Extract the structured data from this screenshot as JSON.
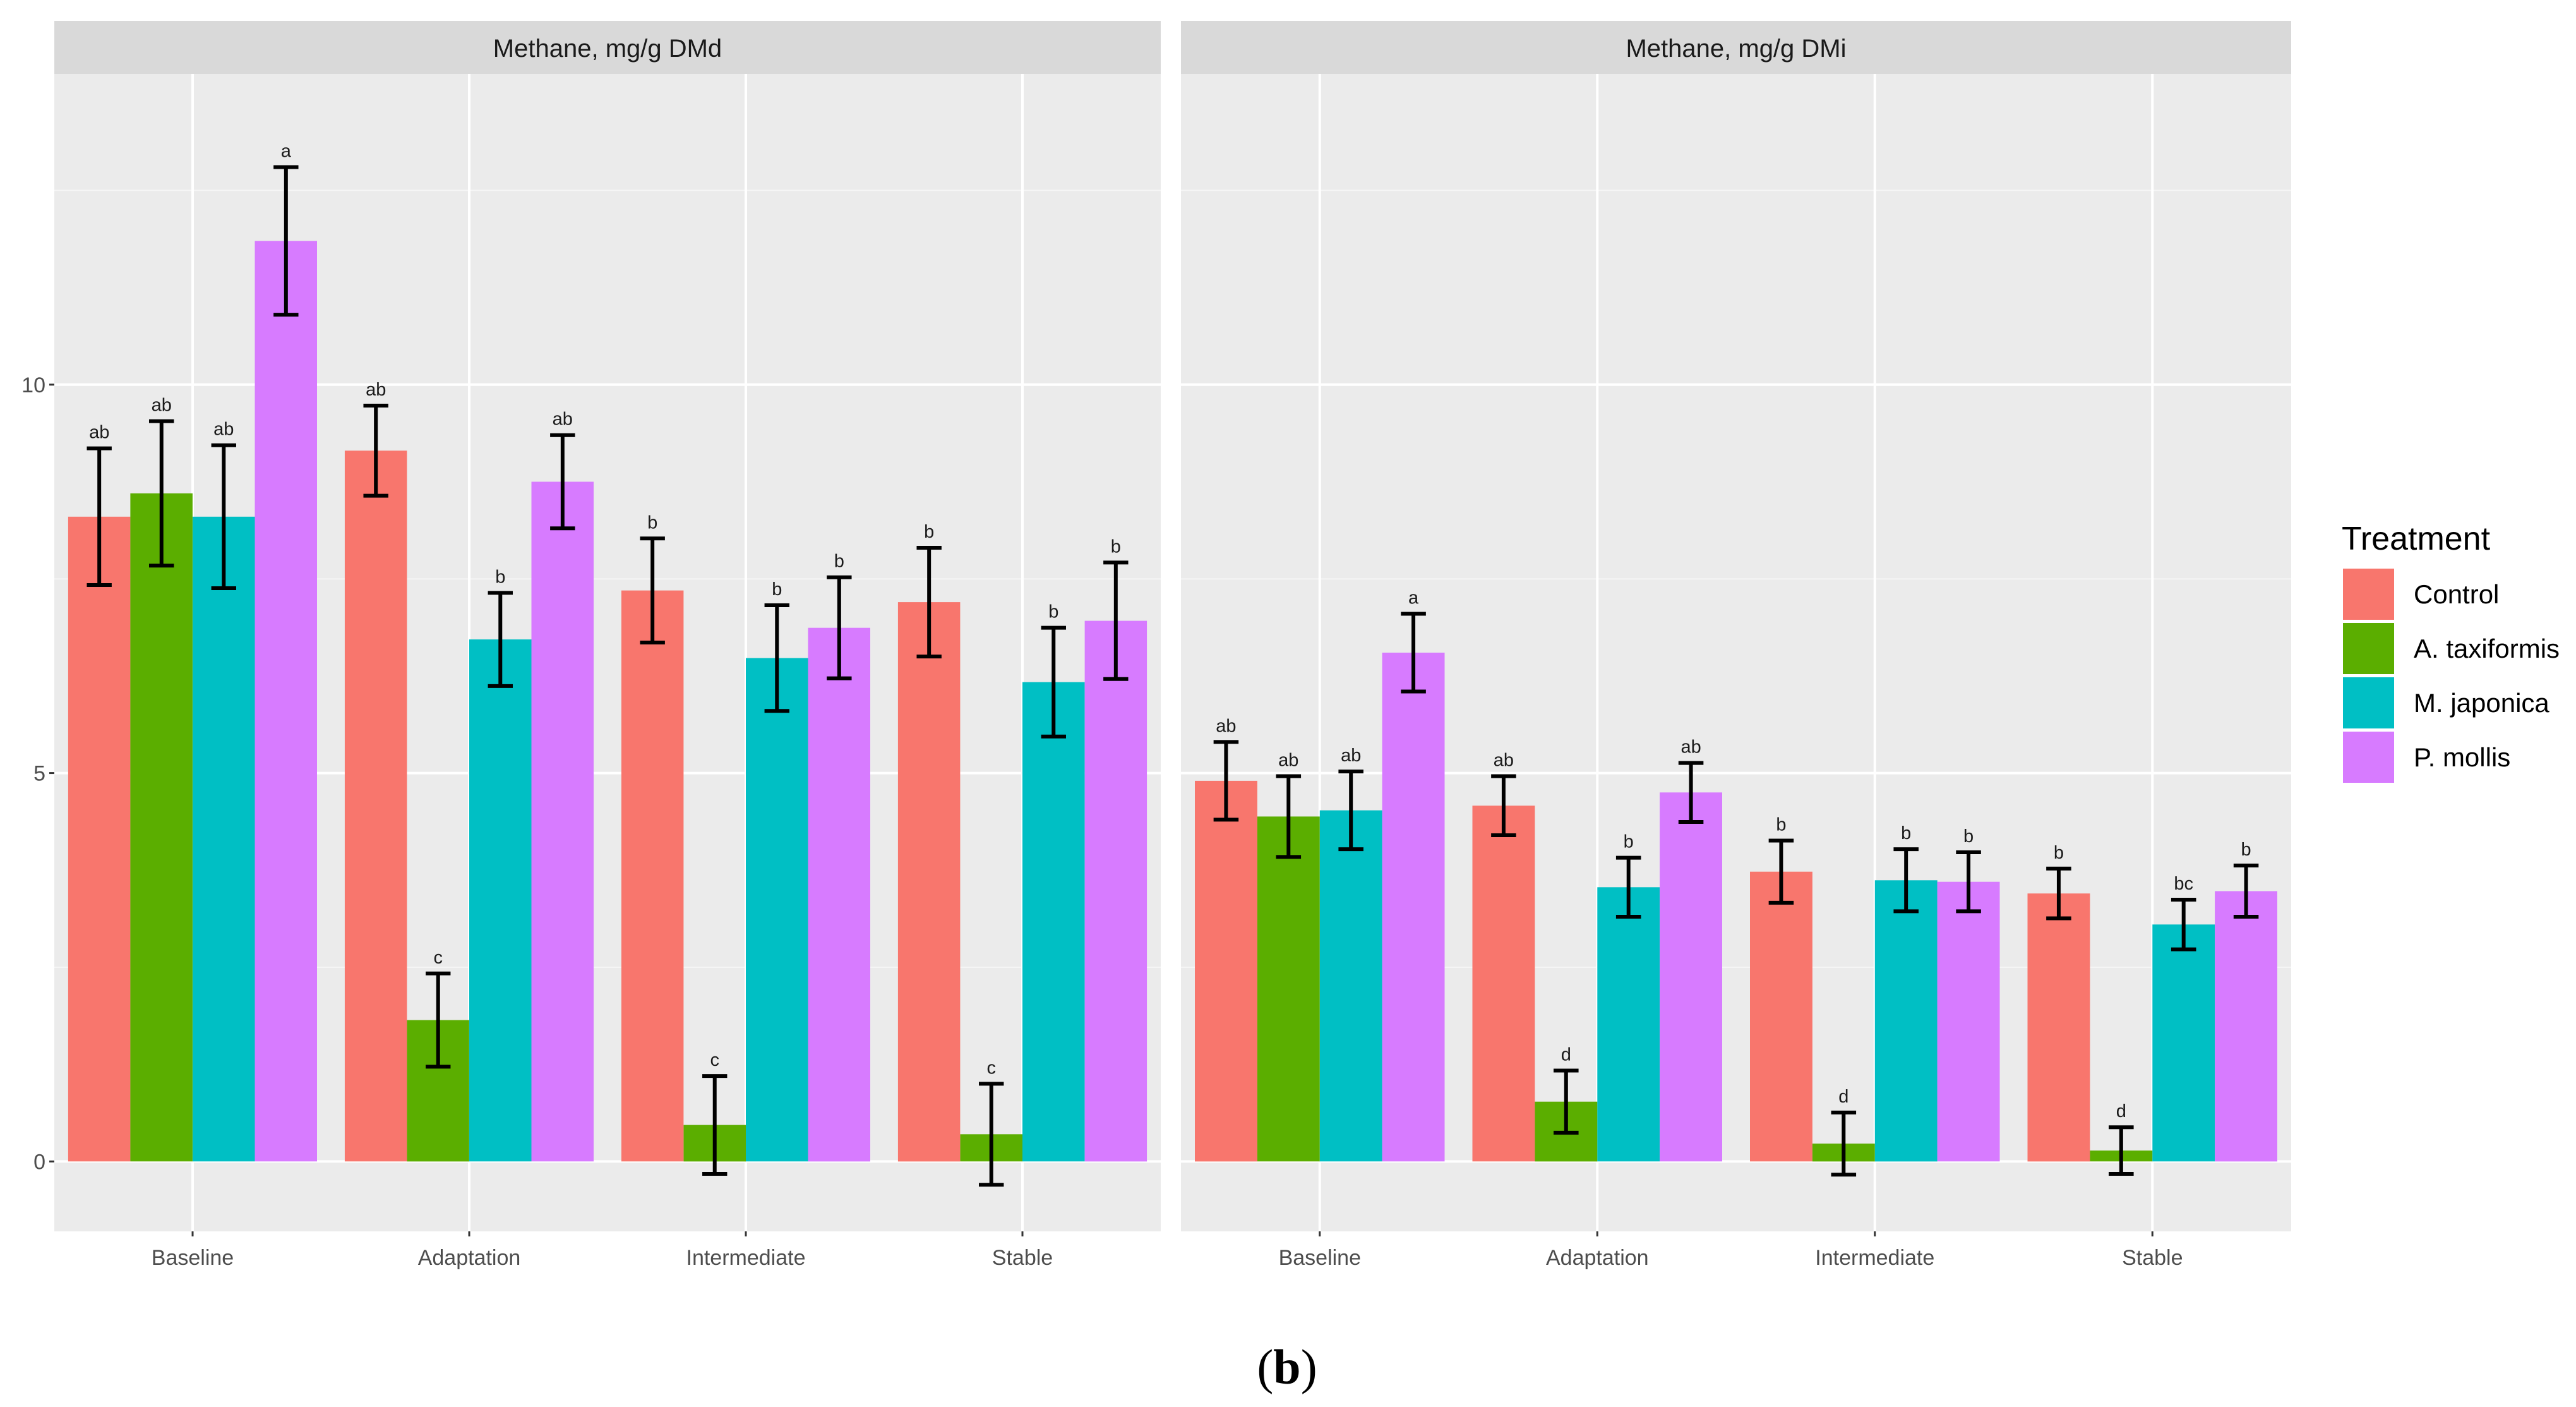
{
  "chart_data": {
    "type": "bar",
    "legend_title": "Treatment",
    "legend_position": "right",
    "series_colors": [
      "#F8766D",
      "#5BAE00",
      "#00BFC4",
      "#D77BFF"
    ],
    "categories": [
      "Baseline",
      "Adaptation",
      "Intermediate",
      "Stable"
    ],
    "ylim": [
      -0.9,
      14.0
    ],
    "yticks": [
      0,
      5,
      10
    ],
    "ytick_labels": [
      "0",
      "5",
      "10"
    ],
    "caption": {
      "open": "(",
      "letter": "b",
      "close": ")"
    },
    "panels": [
      {
        "title": "Methane, mg/g DMd",
        "series": [
          {
            "name": "Control",
            "values": [
              8.3,
              9.15,
              7.35,
              7.2
            ],
            "errors": [
              0.88,
              0.58,
              0.67,
              0.7
            ],
            "labels": [
              "ab",
              "ab",
              "b",
              "b"
            ]
          },
          {
            "name": "A. taxiformis",
            "values": [
              8.6,
              1.82,
              0.47,
              0.35
            ],
            "errors": [
              0.93,
              0.6,
              0.63,
              0.65
            ],
            "labels": [
              "ab",
              "c",
              "c",
              "c"
            ]
          },
          {
            "name": "M. japonica",
            "values": [
              8.3,
              6.72,
              6.48,
              6.17
            ],
            "errors": [
              0.92,
              0.6,
              0.68,
              0.7
            ],
            "labels": [
              "ab",
              "b",
              "b",
              "b"
            ]
          },
          {
            "name": "P. mollis",
            "values": [
              11.85,
              8.75,
              6.87,
              6.96
            ],
            "errors": [
              0.95,
              0.6,
              0.65,
              0.75
            ],
            "labels": [
              "a",
              "ab",
              "b",
              "b"
            ]
          }
        ]
      },
      {
        "title": "Methane, mg/g DMi",
        "series": [
          {
            "name": "Control",
            "values": [
              4.9,
              4.58,
              3.73,
              3.45
            ],
            "errors": [
              0.5,
              0.38,
              0.4,
              0.32
            ],
            "labels": [
              "ab",
              "ab",
              "b",
              "b"
            ]
          },
          {
            "name": "A. taxiformis",
            "values": [
              4.44,
              0.77,
              0.23,
              0.14
            ],
            "errors": [
              0.52,
              0.4,
              0.4,
              0.3
            ],
            "labels": [
              "ab",
              "d",
              "d",
              "d"
            ]
          },
          {
            "name": "M. japonica",
            "values": [
              4.52,
              3.53,
              3.62,
              3.05
            ],
            "errors": [
              0.5,
              0.38,
              0.4,
              0.32
            ],
            "labels": [
              "ab",
              "b",
              "b",
              "bc"
            ]
          },
          {
            "name": "P. mollis",
            "values": [
              6.55,
              4.75,
              3.6,
              3.48
            ],
            "errors": [
              0.5,
              0.38,
              0.38,
              0.33
            ],
            "labels": [
              "a",
              "ab",
              "b",
              "b"
            ]
          }
        ]
      }
    ]
  }
}
